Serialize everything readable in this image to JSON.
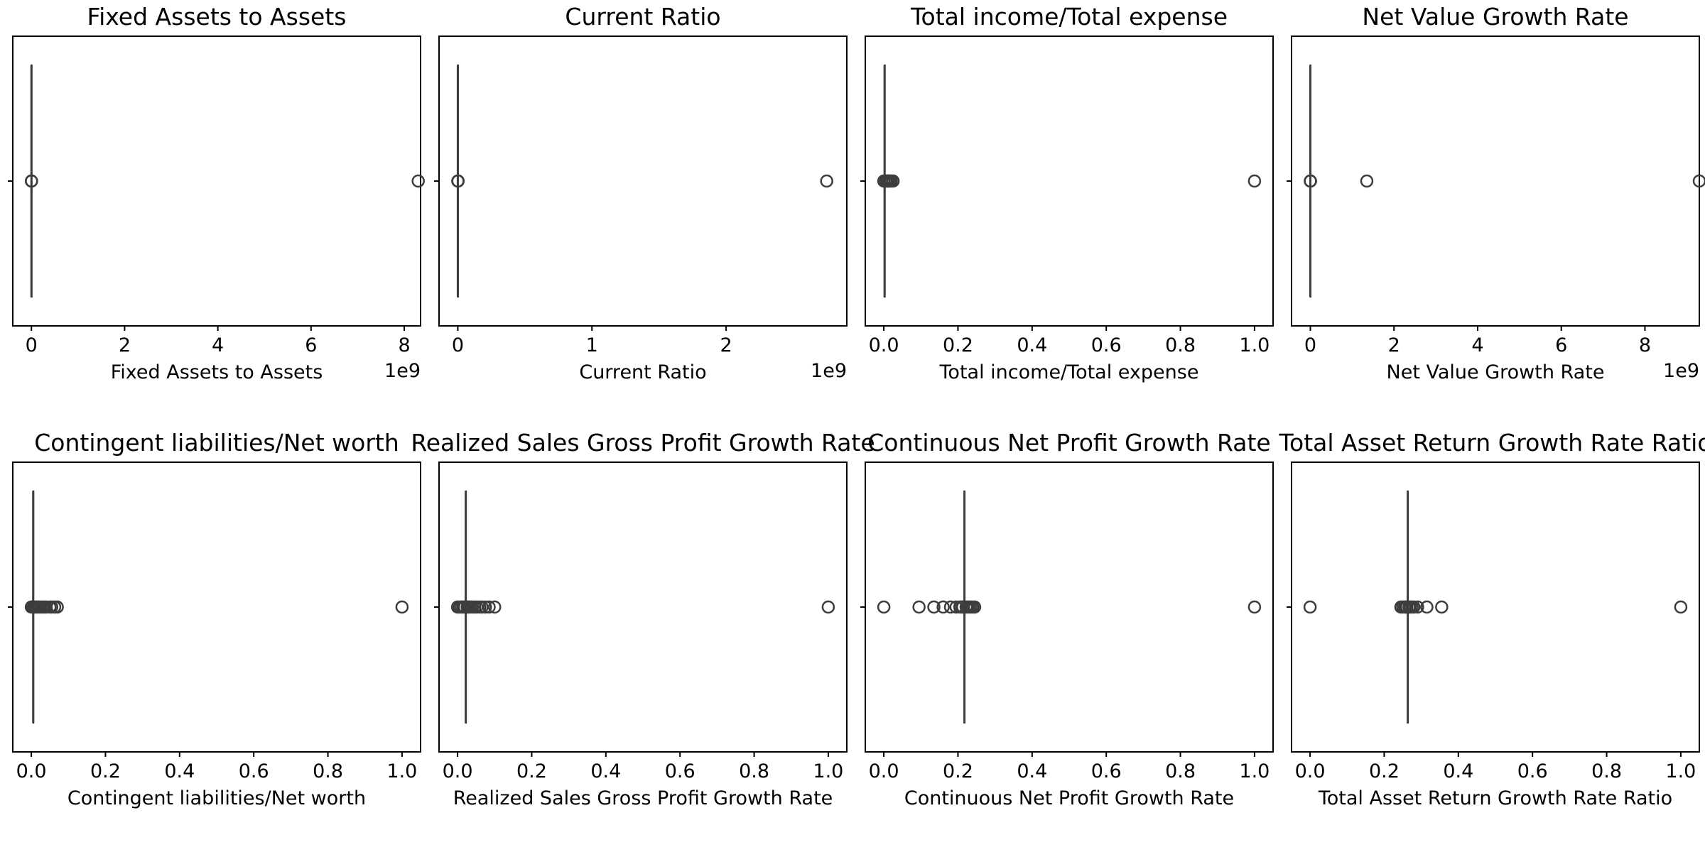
{
  "chart_data": [
    {
      "type": "box",
      "title": "Fixed Assets to Assets",
      "xlabel": "Fixed Assets to Assets",
      "offset_text": "1e9",
      "xlim": [
        -0.4,
        8.35
      ],
      "xticks": [
        0,
        2,
        4,
        6,
        8
      ],
      "xtick_labels": [
        "0",
        "2",
        "4",
        "6",
        "8"
      ],
      "box": {
        "min": 0,
        "q1": 0,
        "median": 0,
        "q3": 0,
        "max": 0
      },
      "outliers": [
        0,
        0.001,
        0.002,
        8.3
      ]
    },
    {
      "type": "box",
      "title": "Current Ratio",
      "xlabel": "Current Ratio",
      "offset_text": "1e9",
      "xlim": [
        -0.14,
        2.9
      ],
      "xticks": [
        0,
        1,
        2
      ],
      "xtick_labels": [
        "0",
        "1",
        "2"
      ],
      "box": {
        "min": 0,
        "q1": 0,
        "median": 0,
        "q3": 0,
        "max": 0
      },
      "outliers": [
        0,
        0.001,
        0.002,
        2.75
      ]
    },
    {
      "type": "box",
      "title": "Total income/Total expense",
      "xlabel": "Total income/Total expense",
      "offset_text": "",
      "xlim": [
        -0.05,
        1.05
      ],
      "xticks": [
        0.0,
        0.2,
        0.4,
        0.6,
        0.8,
        1.0
      ],
      "xtick_labels": [
        "0.0",
        "0.2",
        "0.4",
        "0.6",
        "0.8",
        "1.0"
      ],
      "box": {
        "min": 0.0,
        "q1": 0.002,
        "median": 0.002,
        "q3": 0.003,
        "max": 0.004
      },
      "outliers": [
        0.0,
        0.005,
        0.008,
        0.01,
        0.013,
        0.016,
        0.02,
        0.025,
        1.0
      ]
    },
    {
      "type": "box",
      "title": "Net Value Growth Rate",
      "xlabel": "Net Value Growth Rate",
      "offset_text": "1e9",
      "xlim": [
        -0.45,
        9.3
      ],
      "xticks": [
        0,
        2,
        4,
        6,
        8
      ],
      "xtick_labels": [
        "0",
        "2",
        "4",
        "6",
        "8"
      ],
      "box": {
        "min": 0,
        "q1": 0,
        "median": 0,
        "q3": 0,
        "max": 0
      },
      "outliers": [
        0,
        0.001,
        0.002,
        1.35,
        9.3
      ]
    },
    {
      "type": "box",
      "title": "Contingent liabilities/Net worth",
      "xlabel": "Contingent liabilities/Net worth",
      "offset_text": "",
      "xlim": [
        -0.05,
        1.05
      ],
      "xticks": [
        0.0,
        0.2,
        0.4,
        0.6,
        0.8,
        1.0
      ],
      "xtick_labels": [
        "0.0",
        "0.2",
        "0.4",
        "0.6",
        "0.8",
        "1.0"
      ],
      "box": {
        "min": 0.005,
        "q1": 0.005,
        "median": 0.005,
        "q3": 0.006,
        "max": 0.007
      },
      "outliers": [
        0.0,
        0.004,
        0.008,
        0.012,
        0.016,
        0.02,
        0.025,
        0.03,
        0.035,
        0.04,
        0.05,
        0.055,
        0.063,
        0.07,
        1.0
      ]
    },
    {
      "type": "box",
      "title": "Realized Sales Gross Profit Growth Rate",
      "xlabel": "Realized Sales Gross Profit Growth Rate",
      "offset_text": "",
      "xlim": [
        -0.05,
        1.05
      ],
      "xticks": [
        0.0,
        0.2,
        0.4,
        0.6,
        0.8,
        1.0
      ],
      "xtick_labels": [
        "0.0",
        "0.2",
        "0.4",
        "0.6",
        "0.8",
        "1.0"
      ],
      "box": {
        "min": 0.022,
        "q1": 0.022,
        "median": 0.022,
        "q3": 0.023,
        "max": 0.024
      },
      "outliers": [
        0.0,
        0.005,
        0.01,
        0.015,
        0.019,
        0.026,
        0.03,
        0.035,
        0.04,
        0.046,
        0.052,
        0.06,
        0.066,
        0.075,
        0.085,
        0.1,
        1.0
      ]
    },
    {
      "type": "box",
      "title": "Continuous Net Profit Growth Rate",
      "xlabel": "Continuous Net Profit Growth Rate",
      "offset_text": "",
      "xlim": [
        -0.05,
        1.05
      ],
      "xticks": [
        0.0,
        0.2,
        0.4,
        0.6,
        0.8,
        1.0
      ],
      "xtick_labels": [
        "0.0",
        "0.2",
        "0.4",
        "0.6",
        "0.8",
        "1.0"
      ],
      "box": {
        "min": 0.217,
        "q1": 0.217,
        "median": 0.2175,
        "q3": 0.218,
        "max": 0.219
      },
      "outliers": [
        0.0,
        0.095,
        0.135,
        0.16,
        0.18,
        0.195,
        0.205,
        0.21,
        0.213,
        0.222,
        0.226,
        0.23,
        0.235,
        0.24,
        0.245,
        1.0
      ]
    },
    {
      "type": "box",
      "title": "Total Asset Return Growth Rate Ratio",
      "xlabel": "Total Asset Return Growth Rate Ratio",
      "offset_text": "",
      "xlim": [
        -0.05,
        1.05
      ],
      "xticks": [
        0.0,
        0.2,
        0.4,
        0.6,
        0.8,
        1.0
      ],
      "xtick_labels": [
        "0.0",
        "0.2",
        "0.4",
        "0.6",
        "0.8",
        "1.0"
      ],
      "box": {
        "min": 0.263,
        "q1": 0.263,
        "median": 0.2635,
        "q3": 0.264,
        "max": 0.265
      },
      "outliers": [
        0.0,
        0.245,
        0.25,
        0.255,
        0.259,
        0.261,
        0.267,
        0.27,
        0.275,
        0.28,
        0.29,
        0.315,
        0.355,
        1.0
      ]
    }
  ]
}
